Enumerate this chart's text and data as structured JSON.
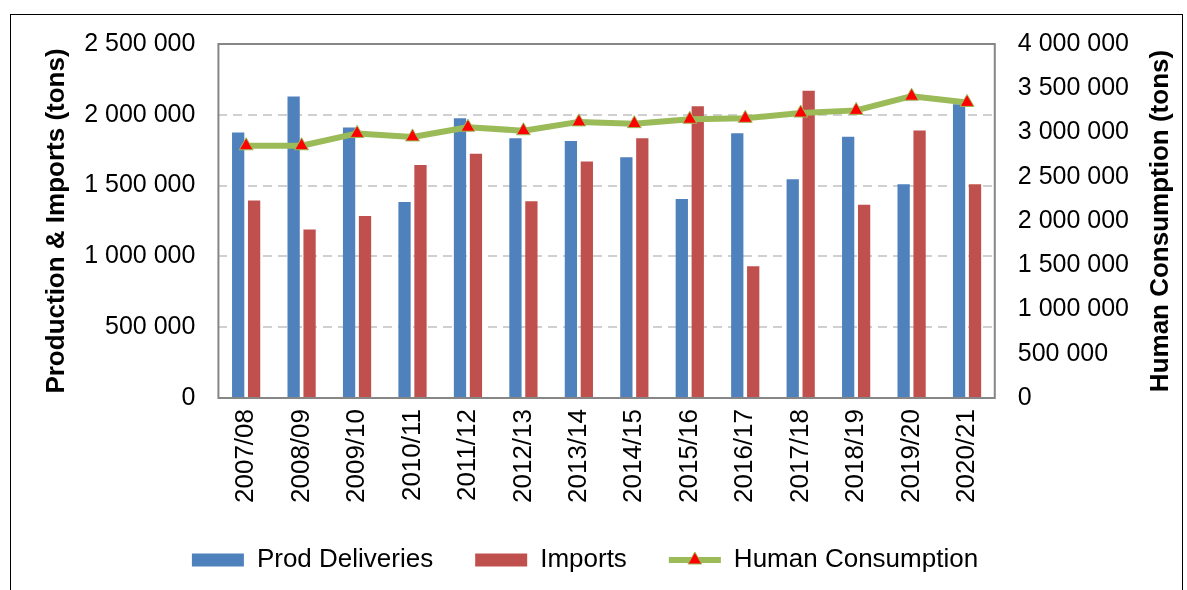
{
  "chart_data": {
    "type": "bar",
    "ylabel": "Production & Imports (tons)",
    "y2label": "Human Consumption (tons)",
    "categories": [
      "2007/08",
      "2008/09",
      "2009/10",
      "2010/11",
      "2011/12",
      "2012/13",
      "2013/14",
      "2014/15",
      "2015/16",
      "2016/17",
      "2017/18",
      "2018/19",
      "2019/20",
      "2020/21"
    ],
    "series": [
      {
        "name": "Prod Deliveries",
        "color": "#4f81bd",
        "values": [
          1875000,
          2130000,
          1910000,
          1385000,
          1975000,
          1835000,
          1815000,
          1700000,
          1405000,
          1870000,
          1545000,
          1845000,
          1510000,
          2075000
        ]
      },
      {
        "name": "Imports",
        "color": "#c0504d",
        "values": [
          1395000,
          1190000,
          1285000,
          1645000,
          1725000,
          1390000,
          1670000,
          1835000,
          2060000,
          930000,
          2170000,
          1365000,
          1890000,
          1510000
        ]
      },
      {
        "name": "Human Consumption",
        "type": "line",
        "axis": "y2",
        "color": "#9bbb59",
        "colors": [
          "#ff0000",
          "#ff0000",
          "#ff0000",
          "#ff0000",
          "#ff0000",
          "#ff0000",
          "#ff0000",
          "#ff0000",
          "#ff0000",
          "#ff0000",
          "#ff0000",
          "#ff0000",
          "#ff0000",
          "#ff0000"
        ],
        "values": [
          2850000,
          2850000,
          2990000,
          2950000,
          3060000,
          3020000,
          3120000,
          3100000,
          3150000,
          3160000,
          3220000,
          3250000,
          3410000,
          3340000
        ]
      }
    ],
    "ylim": [
      0,
      2500000
    ],
    "yticks": [
      0,
      {
        "value": 500000,
        "label": "500 000"
      },
      {
        "value": 1000000,
        "label": "1 000 000"
      },
      {
        "value": 1500000,
        "label": "1 500 000"
      },
      {
        "value": 2000000,
        "label": "2 000 000"
      },
      {
        "value": 2500000,
        "label": "2 500 000"
      }
    ],
    "y2lim": [
      0,
      4000000
    ],
    "y2ticks": [
      0,
      {
        "value": 500000,
        "label": "500 000"
      },
      {
        "value": 1000000,
        "label": "1 000 000"
      },
      {
        "value": 1500000,
        "label": "1 500 000"
      },
      {
        "value": 2000000,
        "label": "2 000 000"
      },
      {
        "value": 2500000,
        "label": "2 500 000"
      },
      {
        "value": 3000000,
        "label": "3 000 000"
      },
      {
        "value": 3500000,
        "label": "3 500 000"
      },
      {
        "value": 4000000,
        "label": "4 000 000"
      }
    ],
    "grid": "y",
    "legend": "bottom",
    "marker": "triangle"
  }
}
